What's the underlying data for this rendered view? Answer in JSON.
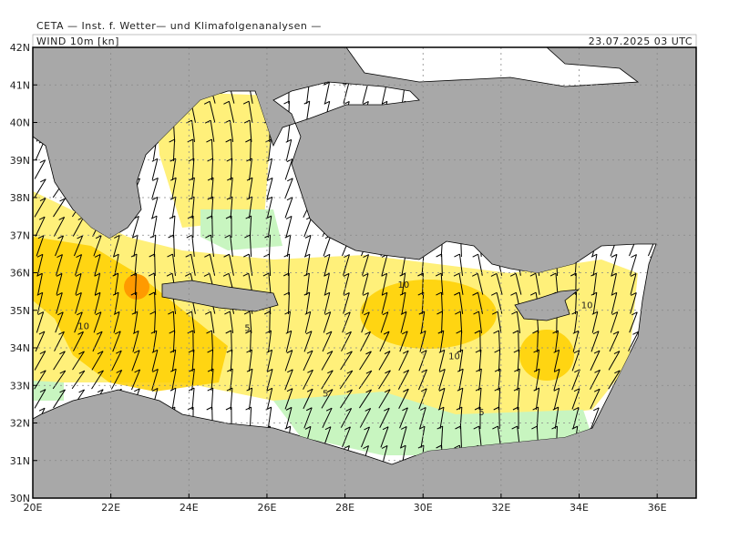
{
  "header": {
    "source": "CETA — Inst. f. Wetter— und Klimafolgenanalysen —",
    "field": "WIND 10m [kn]",
    "time": "23.07.2025 03 UTC"
  },
  "map": {
    "lonlim": [
      20,
      37
    ],
    "latlim": [
      30,
      42
    ],
    "lonticks": [
      {
        "value": 20,
        "label": "20E"
      },
      {
        "value": 22,
        "label": "22E"
      },
      {
        "value": 24,
        "label": "24E"
      },
      {
        "value": 26,
        "label": "26E"
      },
      {
        "value": 28,
        "label": "28E"
      },
      {
        "value": 30,
        "label": "30E"
      },
      {
        "value": 32,
        "label": "32E"
      },
      {
        "value": 34,
        "label": "34E"
      },
      {
        "value": 36,
        "label": "36E"
      }
    ],
    "latticks": [
      {
        "value": 30,
        "label": "30N"
      },
      {
        "value": 31,
        "label": "31N"
      },
      {
        "value": 32,
        "label": "32N"
      },
      {
        "value": 33,
        "label": "33N"
      },
      {
        "value": 34,
        "label": "34N"
      },
      {
        "value": 35,
        "label": "35N"
      },
      {
        "value": 36,
        "label": "36N"
      },
      {
        "value": 37,
        "label": "37N"
      },
      {
        "value": 38,
        "label": "38N"
      },
      {
        "value": 39,
        "label": "39N"
      },
      {
        "value": 40,
        "label": "40N"
      },
      {
        "value": 41,
        "label": "41N"
      },
      {
        "value": 42,
        "label": "42N"
      }
    ],
    "contour_labels": [
      {
        "text": "10",
        "lon": 29.5,
        "lat": 35.7
      },
      {
        "text": "10",
        "lon": 21.3,
        "lon_note": null,
        "lat": 34.6
      },
      {
        "text": "5",
        "lon": 25.5,
        "lat": 34.55
      },
      {
        "text": "10",
        "lon": 30.8,
        "lat": 33.8
      },
      {
        "text": "5",
        "lon": 27.5,
        "lat": 32.8
      },
      {
        "text": "5",
        "lon": 31.5,
        "lat": 32.3
      },
      {
        "text": "10",
        "lon": 34.2,
        "lat": 35.15
      }
    ]
  }
}
